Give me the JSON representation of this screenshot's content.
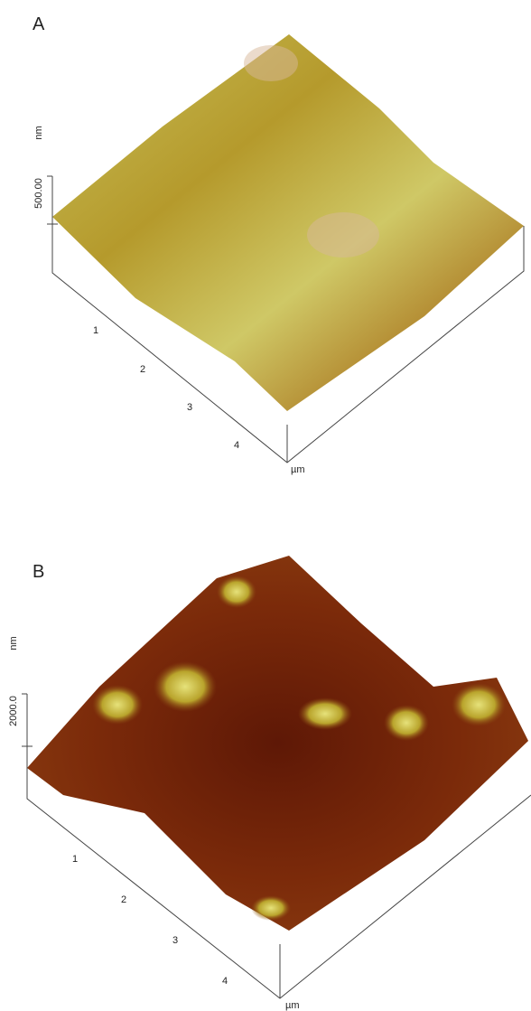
{
  "panels": [
    {
      "label": "A",
      "z_unit": "nm",
      "z_tick": "500.00",
      "x_ticks": [
        "1",
        "2",
        "3",
        "4"
      ],
      "x_unit": "µm"
    },
    {
      "label": "B",
      "z_unit": "nm",
      "z_tick": "2000.0",
      "x_ticks": [
        "1",
        "2",
        "3",
        "4"
      ],
      "x_unit": "µm"
    }
  ]
}
